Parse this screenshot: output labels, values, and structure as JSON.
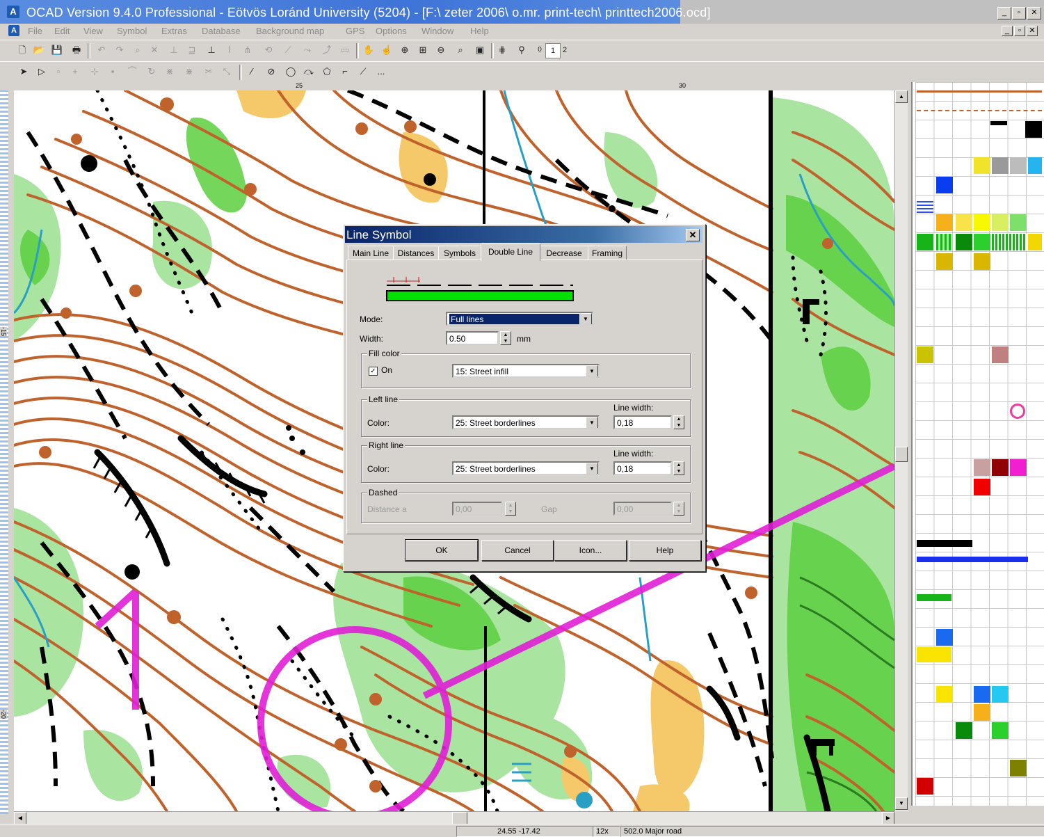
{
  "window": {
    "title": "OCAD Version 9.4.0  Professional - Eötvös Loránd University (5204) - [F:\\ zeter 2006\\ o.mr. print-tech\\ printtech2006.ocd]",
    "app_icon": "ocad-icon"
  },
  "menu": {
    "items": [
      "File",
      "Edit",
      "View",
      "Symbol",
      "Extras",
      "Database",
      "Background map",
      "GPS",
      "Options",
      "Window",
      "Help"
    ]
  },
  "toolbar": {
    "layer_one": "1",
    "layer_two": "2",
    "layer_zero": "0",
    "more": "..."
  },
  "ruler": {
    "top_labels": [
      "25",
      "30"
    ],
    "left_labels": [
      "-15",
      "-20"
    ]
  },
  "dialog": {
    "title": "Line Symbol",
    "tabs": [
      "Main Line",
      "Distances",
      "Symbols",
      "Double Line",
      "Decrease",
      "Framing"
    ],
    "active_tab": "Double Line",
    "mode_label": "Mode:",
    "mode_value": "Full lines",
    "width_label": "Width:",
    "width_value": "0.50",
    "width_unit": "mm",
    "fill_color_group": "Fill color",
    "fill_on_label": "On",
    "fill_on_checked": "☑",
    "fill_color_value": "15: Street infill",
    "left_line_group": "Left line",
    "left_color_label": "Color:",
    "left_color_value": "25: Street borderlines",
    "left_width_label": "Line width:",
    "left_width_value": "0,18",
    "right_line_group": "Right line",
    "right_color_label": "Color:",
    "right_color_value": "25: Street borderlines",
    "right_width_label": "Line width:",
    "right_width_value": "0,18",
    "dashed_group": "Dashed",
    "distance_label": "Distance a",
    "distance_value": "0,00",
    "gap_label": "Gap",
    "gap_value": "0,00",
    "buttons": {
      "ok": "OK",
      "cancel": "Cancel",
      "icon": "Icon...",
      "help": "Help"
    }
  },
  "status": {
    "coords": "24.55  -17.42",
    "zoom": "12x",
    "symbol": "502.0 Major road"
  },
  "colors": {
    "contour": "#c0622b",
    "green": "#5ccf3e",
    "light_green": "#a9e4a0",
    "magenta": "#e01fd6",
    "water": "#2a9fc4",
    "yellow": "#f5c96a",
    "title_blue": "#0a246a",
    "fill_green": "#00e000"
  }
}
